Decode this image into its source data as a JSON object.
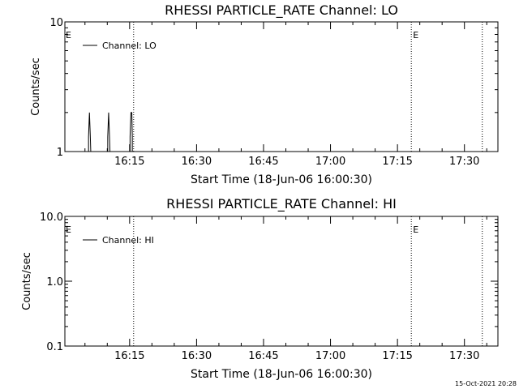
{
  "chart_data": [
    {
      "type": "line",
      "title": "RHESSI PARTICLE_RATE Channel: LO",
      "xlabel": "Start Time (18-Jun-06 16:00:30)",
      "ylabel": "Counts/sec",
      "x_unit": "minutes after 16:00:30",
      "xlim": [
        0,
        97
      ],
      "ylim": [
        1,
        10
      ],
      "yscale": "log",
      "x_ticks": [
        {
          "label": "16:15",
          "value": 14.5
        },
        {
          "label": "16:30",
          "value": 29.5
        },
        {
          "label": "16:45",
          "value": 44.5
        },
        {
          "label": "17:00",
          "value": 59.5
        },
        {
          "label": "17:15",
          "value": 74.5
        },
        {
          "label": "17:30",
          "value": 89.5
        }
      ],
      "y_ticks": [
        {
          "label": "1",
          "value": 1
        },
        {
          "label": "10",
          "value": 10
        }
      ],
      "legend": {
        "position": "top-left",
        "entries": [
          "Channel: LO"
        ]
      },
      "event_lines": [
        {
          "x": 15.4,
          "marker": ""
        },
        {
          "x": 77.6,
          "marker": "E"
        },
        {
          "x": 93.5,
          "marker": ""
        }
      ],
      "edge_markers": [
        {
          "x": 0,
          "label": "E"
        }
      ],
      "series": [
        {
          "name": "Channel: LO",
          "x": [
            0,
            5.3,
            5.3,
            5.5,
            5.7,
            5.8,
            5.8,
            9.6,
            9.6,
            9.8,
            10.0,
            10.1,
            10.1,
            14.6,
            14.6,
            14.8,
            15.0,
            15.1,
            15.1,
            15.4
          ],
          "values": [
            1,
            1,
            1.3,
            2,
            1.3,
            1,
            1,
            1,
            1.3,
            2,
            1.3,
            1,
            1,
            1,
            1.3,
            2,
            2,
            1.3,
            1,
            1
          ]
        }
      ]
    },
    {
      "type": "line",
      "title": "RHESSI PARTICLE_RATE Channel: HI",
      "xlabel": "Start Time (18-Jun-06 16:00:30)",
      "ylabel": "Counts/sec",
      "x_unit": "minutes after 16:00:30",
      "xlim": [
        0,
        97
      ],
      "ylim": [
        0.1,
        10
      ],
      "yscale": "log",
      "x_ticks": [
        {
          "label": "16:15",
          "value": 14.5
        },
        {
          "label": "16:30",
          "value": 29.5
        },
        {
          "label": "16:45",
          "value": 44.5
        },
        {
          "label": "17:00",
          "value": 59.5
        },
        {
          "label": "17:15",
          "value": 74.5
        },
        {
          "label": "17:30",
          "value": 89.5
        }
      ],
      "y_ticks": [
        {
          "label": "0.1",
          "value": 0.1
        },
        {
          "label": "1.0",
          "value": 1
        },
        {
          "label": "10.0",
          "value": 10
        }
      ],
      "legend": {
        "position": "top-left",
        "entries": [
          "Channel: HI"
        ]
      },
      "event_lines": [
        {
          "x": 15.4,
          "marker": ""
        },
        {
          "x": 77.6,
          "marker": "E"
        },
        {
          "x": 93.5,
          "marker": ""
        }
      ],
      "edge_markers": [
        {
          "x": 0,
          "label": "E"
        }
      ],
      "series": [
        {
          "name": "Channel: HI",
          "x": [],
          "values": []
        }
      ]
    }
  ],
  "footer": {
    "timestamp": "15-Oct-2021 20:28"
  }
}
